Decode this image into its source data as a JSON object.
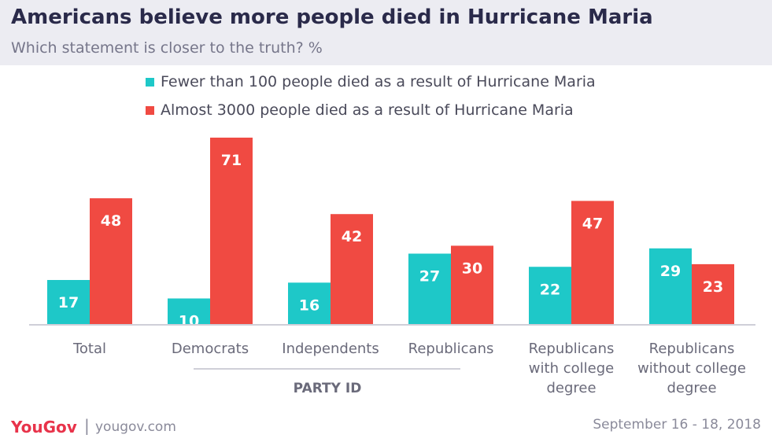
{
  "header": {
    "title": "Americans believe more people died in Hurricane Maria",
    "subtitle": "Which statement is closer to the truth? %"
  },
  "legend": [
    {
      "label": "Fewer than 100 people died as a result of Hurricane Maria",
      "color": "#1ec8c8"
    },
    {
      "label": "Almost 3000 people died as a result of Hurricane Maria",
      "color": "#f04a42"
    }
  ],
  "chart_data": {
    "type": "bar",
    "categories": [
      [
        "Total"
      ],
      [
        "Democrats"
      ],
      [
        "Independents"
      ],
      [
        "Republicans"
      ],
      [
        "Republicans",
        "with college",
        "degree"
      ],
      [
        "Republicans",
        "without college",
        "degree"
      ]
    ],
    "series": [
      {
        "name": "Fewer than 100 people died as a result of Hurricane Maria",
        "values": [
          17,
          10,
          16,
          27,
          22,
          29
        ],
        "color": "#1ec8c8"
      },
      {
        "name": "Almost 3000 people died as a result of Hurricane Maria",
        "values": [
          48,
          71,
          42,
          30,
          47,
          23
        ],
        "color": "#f04a42"
      }
    ],
    "group_label": "PARTY ID",
    "ylim": [
      0,
      71
    ]
  },
  "footer": {
    "brand": "YouGov",
    "separator": "|",
    "url": "yougov.com",
    "date": "September 16 - 18, 2018"
  }
}
